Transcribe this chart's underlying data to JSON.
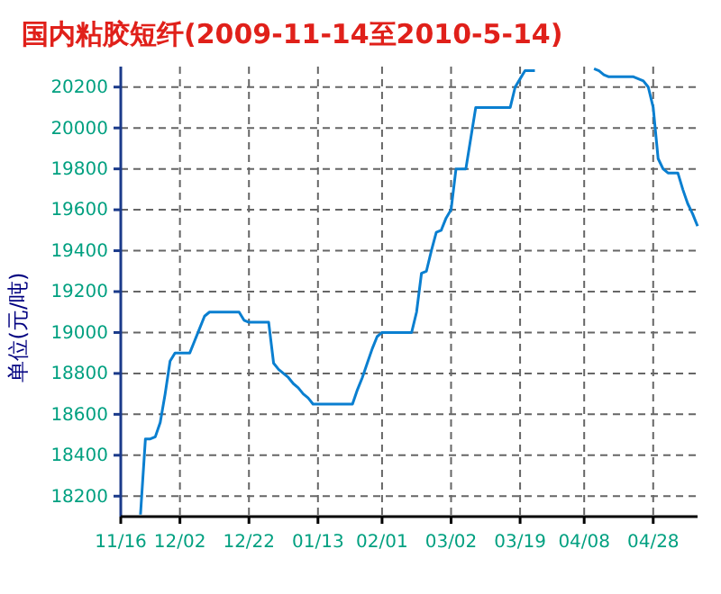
{
  "chart_data": {
    "type": "line",
    "title": "国内粘胶短纤(2009-11-14至2010-5-14)",
    "ylabel": "单位(元/吨)",
    "categories": [
      "11/16",
      null,
      null,
      null,
      null,
      null,
      null,
      null,
      null,
      null,
      null,
      null,
      "12/02",
      null,
      null,
      null,
      null,
      null,
      null,
      null,
      null,
      null,
      null,
      null,
      null,
      null,
      "12/22",
      null,
      null,
      null,
      null,
      null,
      null,
      null,
      null,
      null,
      null,
      null,
      null,
      null,
      "01/13",
      null,
      null,
      null,
      null,
      null,
      null,
      null,
      null,
      null,
      null,
      null,
      null,
      "02/01",
      null,
      null,
      null,
      null,
      null,
      null,
      null,
      null,
      null,
      null,
      null,
      null,
      null,
      "03/02",
      null,
      null,
      null,
      null,
      null,
      null,
      null,
      null,
      null,
      null,
      null,
      null,
      null,
      "03/19",
      null,
      null,
      null,
      null,
      null,
      null,
      null,
      null,
      null,
      null,
      null,
      null,
      "04/08",
      null,
      null,
      null,
      null,
      null,
      null,
      null,
      null,
      null,
      null,
      null,
      null,
      null,
      "04/28",
      null,
      null,
      null,
      null,
      null,
      null,
      null,
      null,
      null
    ],
    "series": [
      {
        "color": "#0a7fd0",
        "values": [
          null,
          null,
          null,
          null,
          18110,
          18480,
          18480,
          18490,
          18560,
          18700,
          18860,
          18900,
          18900,
          18900,
          18900,
          18960,
          19020,
          19080,
          19100,
          19100,
          19100,
          19100,
          19100,
          19100,
          19100,
          19060,
          19050,
          19050,
          19050,
          19050,
          19050,
          18850,
          18820,
          18800,
          18780,
          18750,
          18730,
          18700,
          18680,
          18650,
          18650,
          18650,
          18650,
          18650,
          18650,
          18650,
          18650,
          18650,
          18720,
          18780,
          18850,
          18920,
          18980,
          19000,
          19000,
          19000,
          19000,
          19000,
          19000,
          19000,
          19100,
          19290,
          19300,
          19400,
          19490,
          19500,
          19560,
          19600,
          19800,
          19800,
          19800,
          19950,
          20100,
          20100,
          20100,
          20100,
          20100,
          20100,
          20100,
          20100,
          20200,
          20240,
          20280,
          20280,
          20280,
          null,
          null,
          null,
          null,
          null,
          null,
          null,
          null,
          null,
          null,
          null,
          20290,
          20280,
          20260,
          20250,
          20250,
          20250,
          20250,
          20250,
          20250,
          20240,
          20230,
          20200,
          20100,
          19850,
          19800,
          19780,
          19780,
          19780,
          19700,
          19630,
          19580,
          19520
        ]
      }
    ],
    "ylim": [
      18100,
      20300
    ],
    "yticks": [
      18200,
      18400,
      18600,
      18800,
      19000,
      19200,
      19400,
      19600,
      19800,
      20000,
      20200
    ],
    "grid": true,
    "line_style": "solid",
    "marker": "none"
  }
}
